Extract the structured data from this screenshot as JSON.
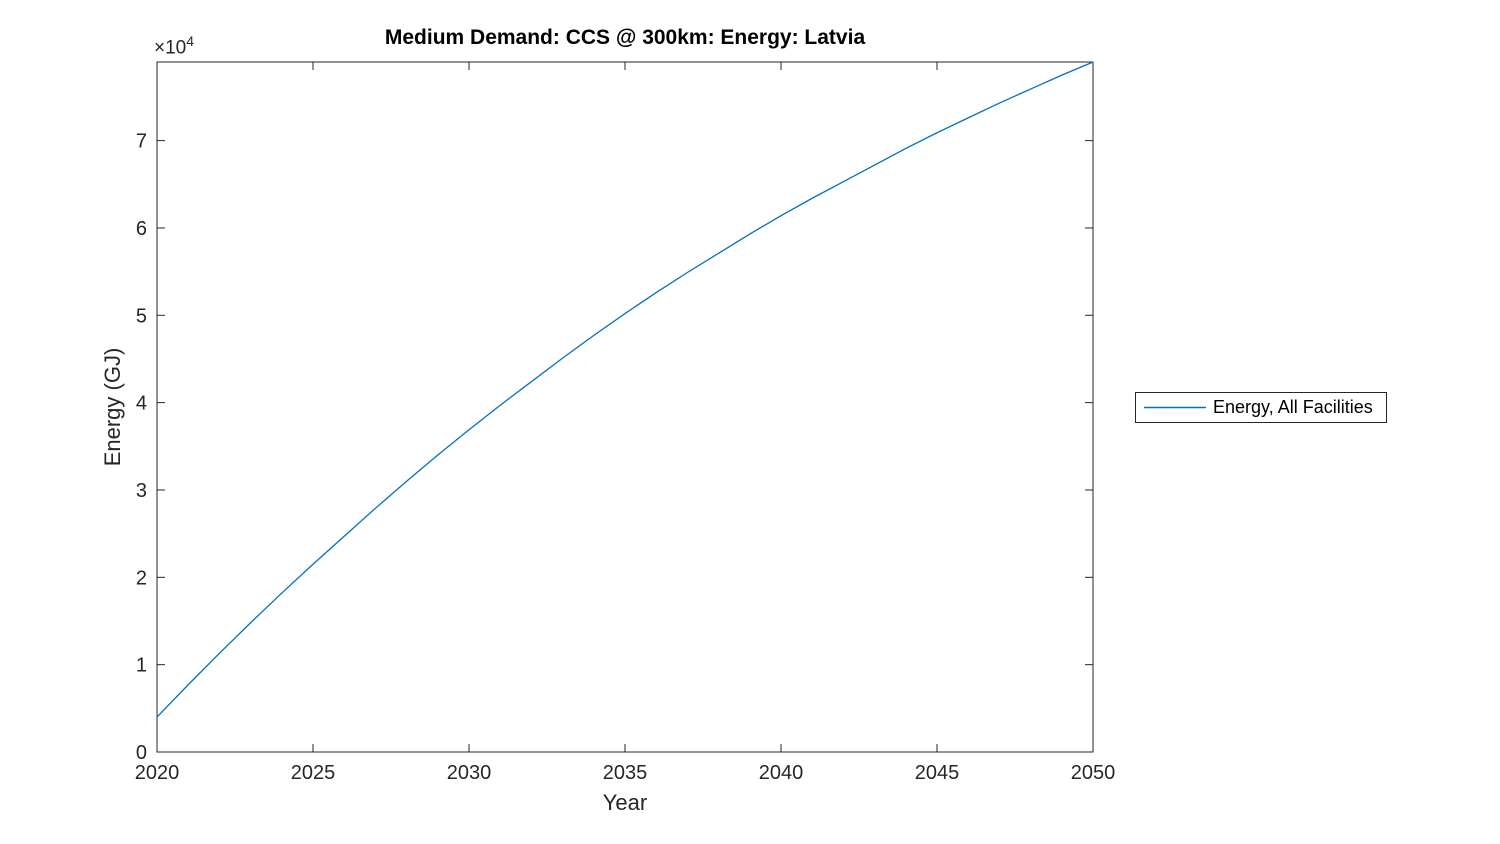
{
  "figure": {
    "title": "Medium Demand: CCS @ 300km: Energy: Latvia",
    "xlabel": "Year",
    "ylabel": "Energy (GJ)",
    "y_multiplier_base": "×10",
    "y_multiplier_exp": "4",
    "colors": {
      "line": "#0072BD",
      "axis": "#262626",
      "title": "#000000",
      "background": "#ffffff"
    },
    "legend": {
      "position": "right-outside",
      "entries": [
        {
          "label": "Energy, All Facilities",
          "color": "#0072BD"
        }
      ]
    }
  },
  "chart_data": {
    "type": "line",
    "title": "Medium Demand: CCS @ 300km: Energy: Latvia",
    "xlabel": "Year",
    "ylabel": "Energy (GJ)",
    "y_unit_note": "y values are in units of 10^4 GJ (axis multiplier ×10^4)",
    "y_scale_multiplier": 10000,
    "xlim": [
      2020,
      2050
    ],
    "ylim": [
      0,
      7.9
    ],
    "x_ticks": [
      2020,
      2025,
      2030,
      2035,
      2040,
      2045,
      2050
    ],
    "y_ticks": [
      0,
      1,
      2,
      3,
      4,
      5,
      6,
      7
    ],
    "grid": false,
    "box": true,
    "legend_position": "right-outside",
    "series": [
      {
        "name": "Energy, All Facilities",
        "color": "#0072BD",
        "x": [
          2020,
          2021,
          2022,
          2023,
          2024,
          2025,
          2026,
          2027,
          2028,
          2029,
          2030,
          2031,
          2032,
          2033,
          2034,
          2035,
          2036,
          2037,
          2038,
          2039,
          2040,
          2041,
          2042,
          2043,
          2044,
          2045,
          2046,
          2047,
          2048,
          2049,
          2050
        ],
        "y": [
          0.4,
          0.77,
          1.13,
          1.48,
          1.82,
          2.15,
          2.47,
          2.79,
          3.1,
          3.4,
          3.69,
          3.97,
          4.24,
          4.51,
          4.77,
          5.02,
          5.26,
          5.49,
          5.71,
          5.93,
          6.14,
          6.34,
          6.53,
          6.72,
          6.91,
          7.09,
          7.26,
          7.43,
          7.59,
          7.75,
          7.9
        ]
      }
    ]
  }
}
